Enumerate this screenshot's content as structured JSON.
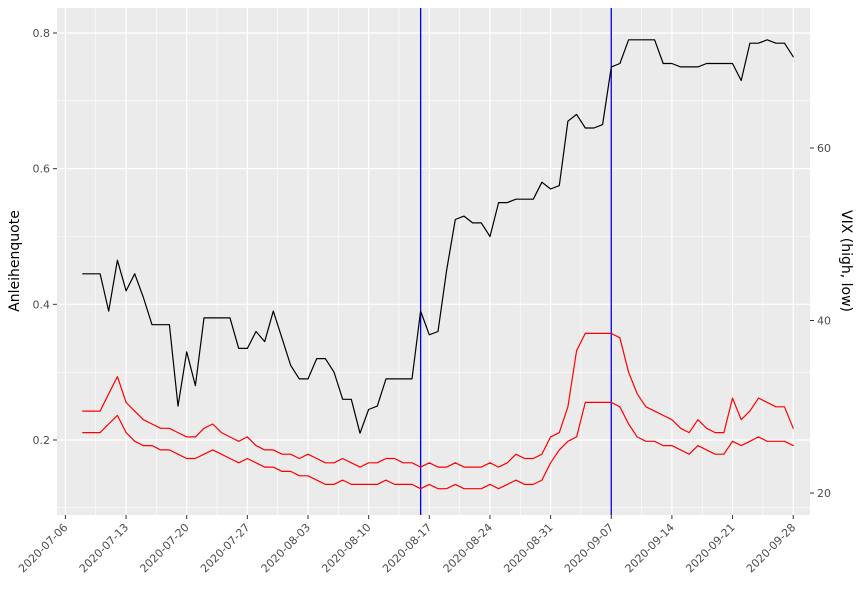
{
  "chart_data": {
    "type": "line",
    "title": "",
    "legend": "none",
    "grid": true,
    "x": {
      "scale": "date",
      "tick_labels": [
        "2020-07-06",
        "2020-07-13",
        "2020-07-20",
        "2020-07-27",
        "2020-08-03",
        "2020-08-10",
        "2020-08-17",
        "2020-08-24",
        "2020-08-31",
        "2020-09-07",
        "2020-09-14",
        "2020-09-21",
        "2020-09-28"
      ]
    },
    "y_left": {
      "label": "Anleihenquote",
      "ticks": [
        "0.2",
        "0.4",
        "0.6",
        "0.8"
      ],
      "range": [
        0.09,
        0.84
      ]
    },
    "y_right": {
      "label": "VIX (high, low)",
      "ticks": [
        "20",
        "40",
        "60"
      ],
      "range": [
        17.4,
        76.3
      ]
    },
    "colors": {
      "panel_bg": "#EBEBEB",
      "grid": "#FFFFFF",
      "tick_mark": "#333333",
      "tick_text": "#4D4D4D",
      "axis_title": "#000000",
      "vline": "#0000EE",
      "anleihenquote": "#000000",
      "vix": "#FF0000"
    },
    "vlines": [
      "2020-08-16",
      "2020-09-07"
    ],
    "series_start_date": "2020-07-08",
    "series": [
      {
        "name": "Anleihenquote",
        "axis": "left",
        "color": "#000000",
        "values": [
          0.445,
          0.445,
          0.445,
          0.39,
          0.465,
          0.42,
          0.445,
          0.41,
          0.37,
          0.37,
          0.37,
          0.25,
          0.33,
          0.28,
          0.38,
          0.38,
          0.38,
          0.38,
          0.335,
          0.335,
          0.36,
          0.345,
          0.39,
          0.35,
          0.31,
          0.29,
          0.29,
          0.32,
          0.32,
          0.3,
          0.26,
          0.26,
          0.21,
          0.245,
          0.25,
          0.29,
          0.29,
          0.29,
          0.29,
          0.39,
          0.355,
          0.36,
          0.45,
          0.525,
          0.53,
          0.52,
          0.52,
          0.5,
          0.55,
          0.55,
          0.555,
          0.555,
          0.555,
          0.58,
          0.57,
          0.575,
          0.67,
          0.68,
          0.66,
          0.66,
          0.665,
          0.75,
          0.755,
          0.79,
          0.79,
          0.79,
          0.79,
          0.755,
          0.755,
          0.75,
          0.75,
          0.75,
          0.755,
          0.755,
          0.755,
          0.755,
          0.73,
          0.785,
          0.785,
          0.79,
          0.785,
          0.785,
          0.765
        ]
      },
      {
        "name": "VIX high",
        "axis": "right",
        "color": "#FF0000",
        "values": [
          29.5,
          29.5,
          29.5,
          31.5,
          33.5,
          30.5,
          29.5,
          28.5,
          28.0,
          27.5,
          27.5,
          27.0,
          26.5,
          26.5,
          27.5,
          28.0,
          27.0,
          26.5,
          26.0,
          26.5,
          25.5,
          25.0,
          25.0,
          24.5,
          24.5,
          24.0,
          24.5,
          24.0,
          23.5,
          23.5,
          24.0,
          23.5,
          23.0,
          23.5,
          23.5,
          24.0,
          24.0,
          23.5,
          23.5,
          23.0,
          23.5,
          23.0,
          23.0,
          23.5,
          23.0,
          23.0,
          23.0,
          23.5,
          23.0,
          23.5,
          24.5,
          24.0,
          24.0,
          24.5,
          26.5,
          27.0,
          30.0,
          36.5,
          38.5,
          38.5,
          38.5,
          38.5,
          38.0,
          34.0,
          31.5,
          30.0,
          29.5,
          29.0,
          28.5,
          27.5,
          27.0,
          28.5,
          27.5,
          27.0,
          27.0,
          31.0,
          28.5,
          29.5,
          31.0,
          30.5,
          30.0,
          30.0,
          27.5
        ]
      },
      {
        "name": "VIX low",
        "axis": "right",
        "color": "#FF0000",
        "values": [
          27.0,
          27.0,
          27.0,
          28.0,
          29.0,
          27.0,
          26.0,
          25.5,
          25.5,
          25.0,
          25.0,
          24.5,
          24.0,
          24.0,
          24.5,
          25.0,
          24.5,
          24.0,
          23.5,
          24.0,
          23.5,
          23.0,
          23.0,
          22.5,
          22.5,
          22.0,
          22.0,
          21.5,
          21.0,
          21.0,
          21.5,
          21.0,
          21.0,
          21.0,
          21.0,
          21.5,
          21.0,
          21.0,
          21.0,
          20.5,
          21.0,
          20.5,
          20.5,
          21.0,
          20.5,
          20.5,
          20.5,
          21.0,
          20.5,
          21.0,
          21.5,
          21.0,
          21.0,
          21.5,
          23.5,
          25.0,
          26.0,
          26.5,
          30.5,
          30.5,
          30.5,
          30.5,
          30.0,
          28.0,
          26.5,
          26.0,
          26.0,
          25.5,
          25.5,
          25.0,
          24.5,
          25.5,
          25.0,
          24.5,
          24.5,
          26.0,
          25.5,
          26.0,
          26.5,
          26.0,
          26.0,
          26.0,
          25.5
        ]
      }
    ]
  }
}
